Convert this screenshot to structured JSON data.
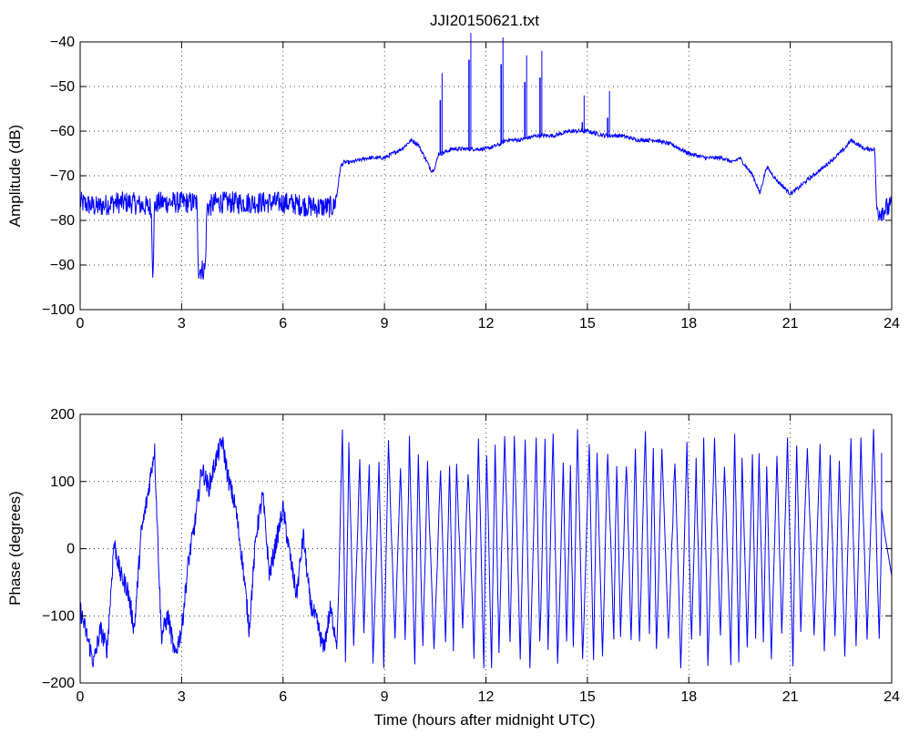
{
  "chart_data": [
    {
      "type": "line",
      "title": "JJI20150621.txt",
      "xlabel": "",
      "ylabel": "Amplitude (dB)",
      "xlim": [
        0,
        24
      ],
      "ylim": [
        -100,
        -40
      ],
      "xticks": [
        0,
        3,
        6,
        9,
        12,
        15,
        18,
        21,
        24
      ],
      "yticks": [
        -100,
        -90,
        -80,
        -70,
        -60,
        -50,
        -40
      ],
      "grid": true,
      "color": "#0000ff",
      "series": [
        {
          "x": [
            0,
            0.5,
            1,
            1.5,
            2,
            2.1,
            2.15,
            2.2,
            2.3,
            2.5,
            3,
            3.45,
            3.5,
            3.55,
            3.7,
            3.75,
            3.8,
            4,
            5,
            6,
            7,
            7.5,
            7.6,
            7.7,
            7.8,
            8,
            8.5,
            9,
            9.5,
            9.8,
            10,
            10.2,
            10.4,
            10.5,
            10.6,
            10.7,
            11,
            11.3,
            11.5,
            11.7,
            12,
            12.4,
            12.6,
            13,
            13.5,
            14,
            14.5,
            15,
            15.5,
            16,
            16.5,
            17,
            17.5,
            18,
            18.5,
            19,
            19.3,
            19.5,
            19.7,
            19.9,
            20.1,
            20.3,
            20.6,
            21,
            21.2,
            21.5,
            22,
            22.3,
            22.6,
            22.8,
            23,
            23.2,
            23.5,
            23.55,
            23.6,
            24
          ],
          "y": [
            -76,
            -77,
            -76,
            -76,
            -77,
            -77,
            -92,
            -77,
            -76,
            -76,
            -76,
            -76,
            -91,
            -91,
            -91,
            -77,
            -77,
            -76,
            -76,
            -76,
            -77,
            -77,
            -74,
            -68,
            -67,
            -67,
            -66,
            -66,
            -64,
            -62,
            -63,
            -66,
            -69,
            -68,
            -65,
            -65,
            -64,
            -64,
            -64,
            -64,
            -64,
            -63,
            -62,
            -62,
            -61,
            -61,
            -60,
            -60,
            -61,
            -61,
            -62,
            -62,
            -63,
            -65,
            -66,
            -66,
            -67,
            -66,
            -68,
            -70,
            -74,
            -68,
            -71,
            -74,
            -73,
            -71,
            -68,
            -66,
            -64,
            -62,
            -63,
            -64,
            -64,
            -77,
            -78,
            -77
          ]
        }
      ],
      "spikes": [
        {
          "x": 10.65,
          "y": -53
        },
        {
          "x": 11.5,
          "y": -44
        },
        {
          "x": 12.45,
          "y": -45
        },
        {
          "x": 13.15,
          "y": -49
        },
        {
          "x": 13.6,
          "y": -48
        },
        {
          "x": 14.85,
          "y": -58
        },
        {
          "x": 15.6,
          "y": -57
        }
      ]
    },
    {
      "type": "line",
      "title": "",
      "xlabel": "Time (hours after midnight UTC)",
      "ylabel": "Phase (degrees)",
      "xlim": [
        0,
        24
      ],
      "ylim": [
        -200,
        200
      ],
      "xticks": [
        0,
        3,
        6,
        9,
        12,
        15,
        18,
        21,
        24
      ],
      "yticks": [
        -200,
        -100,
        0,
        100,
        200
      ],
      "grid": true,
      "color": "#0000ff",
      "series": [
        {
          "x": [
            0,
            0.2,
            0.4,
            0.6,
            0.8,
            1,
            1.2,
            1.4,
            1.6,
            1.8,
            2,
            2.2,
            2.4,
            2.6,
            2.8,
            3,
            3.2,
            3.4,
            3.6,
            3.8,
            4,
            4.2,
            4.4,
            4.6,
            4.8,
            5,
            5.2,
            5.4,
            5.6,
            5.8,
            6,
            6.2,
            6.4,
            6.6,
            6.8,
            7,
            7.2,
            7.4,
            7.6
          ],
          "y": [
            -90,
            -130,
            -170,
            -120,
            -150,
            10,
            -40,
            -60,
            -120,
            20,
            80,
            150,
            -130,
            -100,
            -160,
            -120,
            -20,
            40,
            120,
            90,
            130,
            160,
            100,
            60,
            -20,
            -120,
            20,
            80,
            -40,
            10,
            60,
            -10,
            -70,
            20,
            -80,
            -110,
            -150,
            -90,
            -140
          ]
        }
      ],
      "wrap_oscillation": {
        "start": 7.6,
        "end": 23.7,
        "range": [
          -180,
          180
        ]
      }
    }
  ]
}
